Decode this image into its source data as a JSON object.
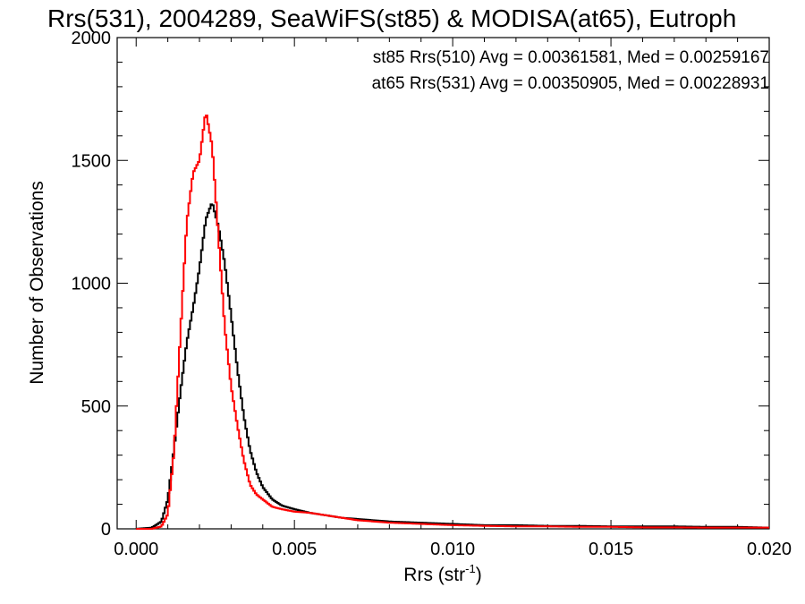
{
  "chart_data": {
    "type": "line",
    "title": "Rrs(531), 2004289, SeaWiFS(st85) & MODISA(at65), Eutroph",
    "xlabel": "Rrs (str",
    "xlabel_sup": "-1",
    "xlabel_close": ")",
    "ylabel": "Number of Observations",
    "xlim": [
      -0.0006,
      0.02
    ],
    "ylim": [
      0,
      2000
    ],
    "xticks": [
      0.0,
      0.005,
      0.01,
      0.015,
      0.02
    ],
    "xtick_labels": [
      "0.000",
      "0.005",
      "0.010",
      "0.015",
      "0.020"
    ],
    "yticks": [
      0,
      500,
      1000,
      1500,
      2000
    ],
    "ytick_labels": [
      "0",
      "500",
      "1000",
      "1500",
      "2000"
    ],
    "grid": false,
    "legend": [
      {
        "text": "st85 Rrs(510) Avg = 0.00361581, Med = 0.00259167",
        "color": "#000000"
      },
      {
        "text": "at65 Rrs(531) Avg = 0.00350905, Med = 0.00228931",
        "color": "#ff0000"
      }
    ],
    "series": [
      {
        "color": "#000000",
        "x": [
          0.0,
          0.0005,
          0.0008,
          0.001,
          0.0012,
          0.0014,
          0.0016,
          0.0018,
          0.002,
          0.0022,
          0.0024,
          0.0026,
          0.0028,
          0.003,
          0.0032,
          0.0034,
          0.0036,
          0.0038,
          0.004,
          0.0043,
          0.0046,
          0.005,
          0.0055,
          0.006,
          0.0065,
          0.007,
          0.008,
          0.009,
          0.01,
          0.011,
          0.012,
          0.013,
          0.014,
          0.015,
          0.016,
          0.017,
          0.018,
          0.019,
          0.02
        ],
        "y": [
          0,
          5,
          30,
          120,
          330,
          560,
          760,
          900,
          1060,
          1260,
          1330,
          1230,
          1080,
          870,
          650,
          460,
          320,
          230,
          170,
          120,
          95,
          80,
          65,
          55,
          45,
          40,
          30,
          25,
          20,
          15,
          15,
          12,
          12,
          10,
          10,
          10,
          8,
          8,
          5
        ]
      },
      {
        "color": "#ff0000",
        "x": [
          0.0,
          0.0005,
          0.0008,
          0.001,
          0.0012,
          0.0014,
          0.0016,
          0.0018,
          0.002,
          0.0022,
          0.0024,
          0.0026,
          0.0028,
          0.003,
          0.0032,
          0.0034,
          0.0036,
          0.0038,
          0.004,
          0.0043,
          0.0046,
          0.005,
          0.0055,
          0.006,
          0.0065,
          0.007,
          0.008,
          0.009,
          0.01,
          0.011,
          0.012,
          0.013,
          0.014,
          0.015,
          0.016,
          0.017,
          0.018,
          0.019,
          0.02
        ],
        "y": [
          0,
          0,
          10,
          60,
          320,
          800,
          1250,
          1450,
          1500,
          1700,
          1560,
          1190,
          820,
          580,
          420,
          280,
          180,
          140,
          120,
          90,
          80,
          70,
          65,
          55,
          45,
          35,
          25,
          20,
          15,
          12,
          10,
          10,
          8,
          8,
          6,
          6,
          5,
          5,
          5
        ]
      }
    ]
  }
}
